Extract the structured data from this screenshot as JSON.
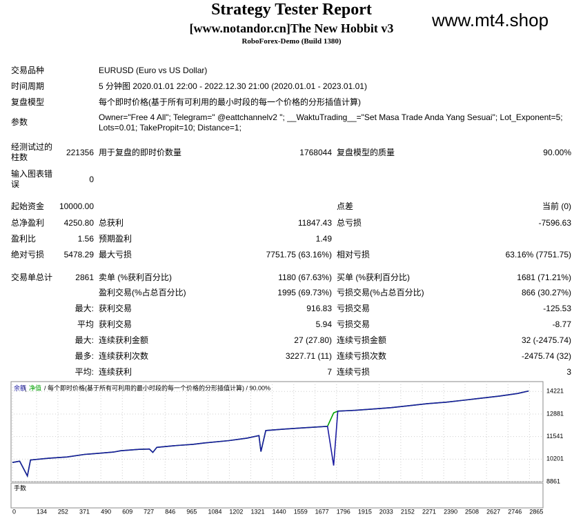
{
  "header": {
    "title": "Strategy Tester Report",
    "subtitle": "[www.notandor.cn]The New Hobbit v3",
    "build": "RoboForex-Demo (Build 1380)",
    "watermark": "www.mt4.shop"
  },
  "info": [
    {
      "label": "交易品种",
      "value": "EURUSD (Euro vs US Dollar)"
    },
    {
      "label": "时间周期",
      "value": "5 分钟图 2020.01.01 22:00 - 2022.12.30 21:00 (2020.01.01 - 2023.01.01)"
    },
    {
      "label": "复盘模型",
      "value": "每个即时价格(基于所有可利用的最小时段的每一个价格的分形插值计算)"
    },
    {
      "label": "参数",
      "value": "Owner=\"Free 4 All\"; Telegram=\" @eattchannelv2 \"; __WaktuTrading__=\"Set Masa Trade Anda Yang Sesuai\"; Lot_Exponent=5; Lots=0.01; TakePropit=10; Distance=1;"
    }
  ],
  "stats": [
    {
      "l1": "经测试过的柱数",
      "v1": "221356",
      "l2": "用于复盘的即时价数量",
      "v2": "1768044",
      "l3": "复盘模型的质量",
      "v3": "90.00%"
    },
    {
      "l1": "输入图表错误",
      "v1": "0"
    },
    {
      "l1": "起始资金",
      "v1": "10000.00",
      "l3": "点差",
      "v3": "当前 (0)"
    },
    {
      "l1": "总净盈利",
      "v1": "4250.80",
      "l2": "总获利",
      "v2": "11847.43",
      "l3": "总亏损",
      "v3": "-7596.63"
    },
    {
      "l1": "盈利比",
      "v1": "1.56",
      "l2": "预期盈利",
      "v2": "1.49"
    },
    {
      "l1": "绝对亏损",
      "v1": "5478.29",
      "l2": "最大亏损",
      "v2": "7751.75 (63.16%)",
      "l3": "相对亏损",
      "v3": "63.16% (7751.75)"
    },
    {
      "l1": "交易单总计",
      "v1": "2861",
      "l2": "卖单 (%获利百分比)",
      "v2": "1180 (67.63%)",
      "l3": "买单 (%获利百分比)",
      "v3": "1681 (71.21%)"
    },
    {
      "l2": "盈利交易(%占总百分比)",
      "v2": "1995 (69.73%)",
      "l3": "亏损交易(%占总百分比)",
      "v3": "866 (30.27%)"
    },
    {
      "v1": "最大:",
      "l2": "获利交易",
      "v2": "916.83",
      "l3": "亏损交易",
      "v3": "-125.53"
    },
    {
      "v1": "平均",
      "l2": "获利交易",
      "v2": "5.94",
      "l3": "亏损交易",
      "v3": "-8.77"
    },
    {
      "v1": "最大:",
      "l2": "连续获利金额",
      "v2": "27 (27.80)",
      "l3": "连续亏损金额",
      "v3": "32 (-2475.74)"
    },
    {
      "v1": "最多:",
      "l2": "连续获利次数",
      "v2": "3227.71 (11)",
      "l3": "连续亏损次数",
      "v3": "-2475.74 (32)"
    },
    {
      "v1": "平均:",
      "l2": "连续获利",
      "v2": "7",
      "l3": "连续亏损",
      "v3": "3"
    }
  ],
  "chart_data": {
    "type": "line",
    "model_label": "/ 每个即时价格(基于所有可利用的最小时段的每一个价格的分形插值计算) / 90.00%",
    "volume_label": "手数",
    "x": [
      0,
      40,
      83,
      100,
      200,
      304,
      400,
      493,
      560,
      600,
      700,
      759,
      778,
      800,
      900,
      1000,
      1063,
      1200,
      1300,
      1366,
      1377,
      1404,
      1500,
      1600,
      1746,
      1780,
      1803,
      1900,
      2000,
      2100,
      2201,
      2300,
      2400,
      2500,
      2580,
      2700,
      2800,
      2861
    ],
    "series": [
      {
        "name": "净值",
        "color": "#00a000",
        "values": [
          10000,
          10080,
          9200,
          10150,
          10250,
          10330,
          10480,
          10560,
          10620,
          10700,
          10780,
          10800,
          10600,
          10900,
          11000,
          11080,
          11160,
          11300,
          11450,
          11600,
          10650,
          11900,
          11980,
          12050,
          12150,
          12950,
          13050,
          13100,
          13180,
          13260,
          13380,
          13500,
          13580,
          13700,
          13800,
          13950,
          14100,
          14250.8
        ]
      },
      {
        "name": "余额",
        "color": "#1a1aa0",
        "values": [
          10000,
          10080,
          9200,
          10150,
          10250,
          10330,
          10480,
          10560,
          10620,
          10700,
          10780,
          10800,
          10600,
          10900,
          11000,
          11080,
          11160,
          11300,
          11450,
          11600,
          10650,
          11900,
          11980,
          12050,
          12150,
          9820,
          13050,
          13100,
          13180,
          13260,
          13380,
          13500,
          13580,
          13700,
          13800,
          13950,
          14100,
          14250.8
        ]
      }
    ],
    "xlim": [
      0,
      2940
    ],
    "xticks": [
      0,
      134,
      252,
      371,
      490,
      609,
      727,
      846,
      965,
      1084,
      1202,
      1321,
      1440,
      1559,
      1677,
      1796,
      1915,
      2033,
      2152,
      2271,
      2390,
      2508,
      2627,
      2746,
      2865
    ],
    "ylim": [
      8861,
      14807
    ],
    "yticks": [
      8861,
      10201,
      11541,
      12881,
      14221
    ],
    "grid": true
  }
}
